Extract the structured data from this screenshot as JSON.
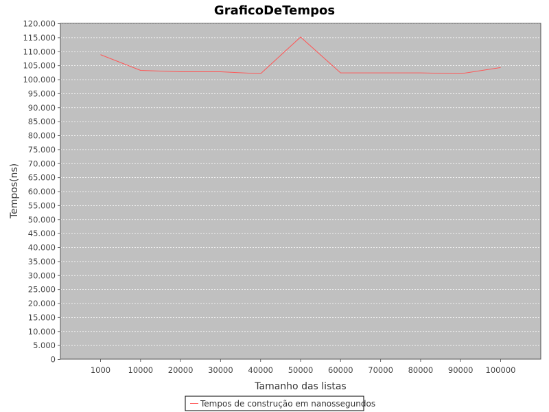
{
  "chart_data": {
    "type": "line",
    "title": "GraficoDeTempos",
    "xlabel": "Tamanho das listas",
    "ylabel": "Tempos(ns)",
    "categories": [
      "1000",
      "10000",
      "20000",
      "30000",
      "40000",
      "50000",
      "60000",
      "70000",
      "80000",
      "90000",
      "100000"
    ],
    "series": [
      {
        "name": "Tempos de construção em nanossegundos",
        "color": "#ff5555",
        "values": [
          108800,
          103200,
          102700,
          102700,
          102000,
          115100,
          102300,
          102300,
          102300,
          102000,
          104200
        ]
      }
    ],
    "ylim": [
      0,
      120000
    ],
    "ytick_step": 5000,
    "yticks": [
      "0",
      "5.000",
      "10.000",
      "15.000",
      "20.000",
      "25.000",
      "30.000",
      "35.000",
      "40.000",
      "45.000",
      "50.000",
      "55.000",
      "60.000",
      "65.000",
      "70.000",
      "75.000",
      "80.000",
      "85.000",
      "90.000",
      "95.000",
      "100.000",
      "105.000",
      "110.000",
      "115.000",
      "120.000"
    ],
    "grid": true,
    "legend_position": "bottom-center",
    "plot_background": "#c0c0c0",
    "grid_color": "#ffffff"
  }
}
